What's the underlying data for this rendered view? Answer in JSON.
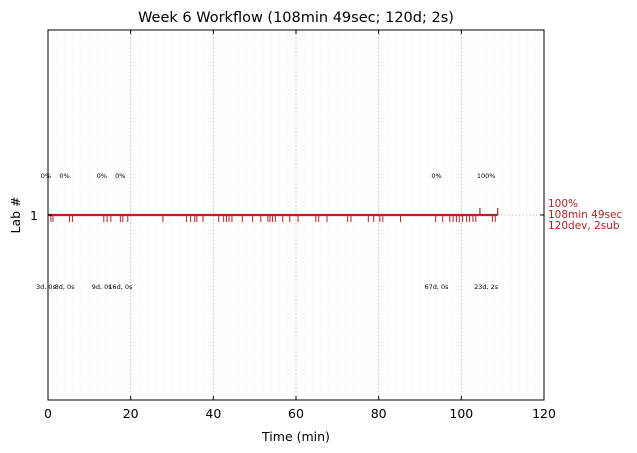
{
  "chart_data": {
    "type": "line",
    "title": "Week 6 Workflow (108min 49sec; 120d; 2s)",
    "xlabel": "Time (min)",
    "ylabel": "Lab #",
    "xlim": [
      0,
      120
    ],
    "xticks": [
      0,
      20,
      40,
      60,
      80,
      100,
      120
    ],
    "yticks": [
      1
    ],
    "grid": "dotted vertical every 20 min, faint every 2 min",
    "color": "#b22222",
    "series": [
      {
        "lab": 1,
        "start": 0,
        "end": 108.8,
        "end_label": [
          "100%",
          "108min 49sec",
          "120dev, 2sub"
        ],
        "submissions": [
          104.5,
          108.8
        ],
        "events": [
          0.7,
          1.2,
          5.2,
          5.9,
          13.5,
          14.3,
          15.2,
          17.5,
          18.1,
          19.3,
          27.8,
          33.5,
          34.5,
          35.5,
          36.0,
          37.5,
          41.3,
          42.5,
          43.2,
          43.8,
          44.5,
          47.0,
          49.5,
          51.5,
          53.2,
          53.7,
          54.3,
          55.0,
          56.8,
          58.5,
          60.5,
          64.8,
          65.5,
          67.5,
          72.5,
          73.3,
          77.5,
          78.8,
          80.3,
          81.0,
          85.3,
          93.8,
          95.5,
          97.2,
          98.0,
          98.8,
          99.5,
          100.3,
          101.3,
          102.0,
          102.8,
          103.5,
          107.5,
          108.2
        ]
      }
    ],
    "annotations": [
      {
        "x": -0.5,
        "pct": "0%",
        "info": "3d, 0s"
      },
      {
        "x": 4.0,
        "pct": "0%",
        "info": "8d, 0s"
      },
      {
        "x": 13.0,
        "pct": "0%",
        "info": "9d, 0s"
      },
      {
        "x": 17.5,
        "pct": "0%",
        "info": "16d, 0s"
      },
      {
        "x": 94.0,
        "pct": "0%",
        "info": "67d, 0s"
      },
      {
        "x": 106.0,
        "pct": "100%",
        "info": "23d, 2s"
      }
    ]
  }
}
